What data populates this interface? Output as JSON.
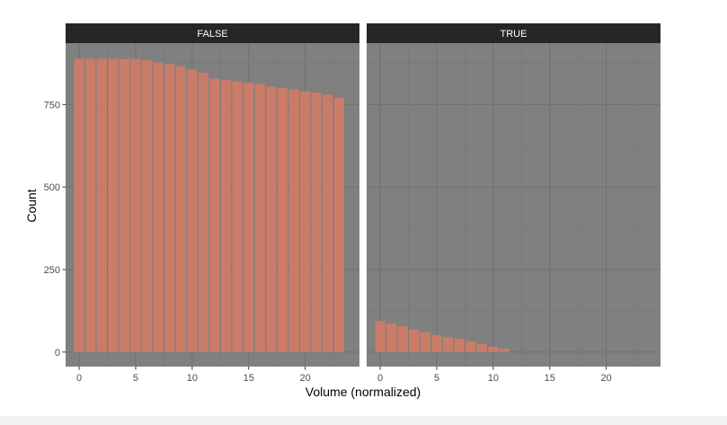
{
  "colors": {
    "panel_background": "#808080",
    "strip_background": "#262626",
    "strip_text": "#ffffff",
    "bar_fill": "#cd7b67",
    "grid_major": "#6f6f6f",
    "grid_minor": "#777777",
    "axis_text": "#4d4d4d",
    "title_text": "#000000"
  },
  "chart_data": {
    "type": "bar",
    "facets": [
      {
        "label": "FALSE",
        "x": [
          0,
          1,
          2,
          3,
          4,
          5,
          6,
          7,
          8,
          9,
          10,
          11,
          12,
          13,
          14,
          15,
          16,
          17,
          18,
          19,
          20,
          21,
          22,
          23
        ],
        "values": [
          888,
          888,
          888,
          888,
          888,
          888,
          884,
          878,
          872,
          866,
          856,
          846,
          828,
          824,
          820,
          816,
          812,
          804,
          800,
          796,
          790,
          786,
          780,
          770
        ]
      },
      {
        "label": "TRUE",
        "x": [
          0,
          1,
          2,
          3,
          4,
          5,
          6,
          7,
          8,
          9,
          10,
          11
        ],
        "values": [
          94,
          86,
          78,
          68,
          60,
          52,
          46,
          40,
          32,
          24,
          16,
          10
        ]
      }
    ],
    "xlabel": "Volume (normalized)",
    "ylabel": "Count",
    "xlim": [
      -1.2,
      24.8
    ],
    "ylim": [
      -44,
      936
    ],
    "x_ticks": [
      0,
      5,
      10,
      15,
      20
    ],
    "y_ticks": [
      0,
      250,
      500,
      750
    ],
    "grid": true,
    "legend": "none"
  }
}
